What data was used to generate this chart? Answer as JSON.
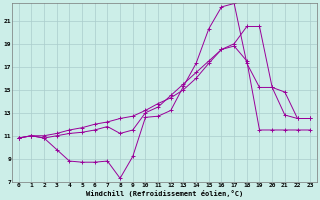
{
  "xlabel": "Windchill (Refroidissement éolien,°C)",
  "background_color": "#cceee8",
  "grid_color": "#aacccc",
  "line_color": "#990099",
  "xlim": [
    -0.5,
    23.5
  ],
  "ylim": [
    7,
    22.5
  ],
  "yticks": [
    7,
    9,
    11,
    13,
    15,
    17,
    19,
    21
  ],
  "xticks": [
    0,
    1,
    2,
    3,
    4,
    5,
    6,
    7,
    8,
    9,
    10,
    11,
    12,
    13,
    14,
    15,
    16,
    17,
    18,
    19,
    20,
    21,
    22,
    23
  ],
  "series": [
    [
      10.8,
      11.0,
      10.8,
      9.8,
      8.8,
      8.7,
      8.7,
      8.8,
      7.3,
      9.2,
      12.6,
      12.7,
      13.2,
      15.3,
      17.3,
      20.3,
      22.2,
      22.5,
      17.3,
      15.2,
      15.2,
      12.8,
      12.5,
      12.5
    ],
    [
      10.8,
      11.0,
      10.8,
      11.0,
      11.2,
      11.3,
      11.5,
      11.8,
      11.2,
      11.5,
      13.0,
      13.5,
      14.5,
      15.5,
      16.5,
      17.5,
      18.5,
      19.0,
      20.5,
      20.5,
      15.2,
      14.8,
      12.5,
      12.5
    ],
    [
      10.8,
      11.0,
      11.0,
      11.2,
      11.5,
      11.7,
      12.0,
      12.2,
      12.5,
      12.7,
      13.2,
      13.8,
      14.3,
      15.0,
      16.0,
      17.3,
      18.5,
      18.8,
      17.5,
      11.5,
      11.5,
      11.5,
      11.5,
      11.5
    ]
  ]
}
